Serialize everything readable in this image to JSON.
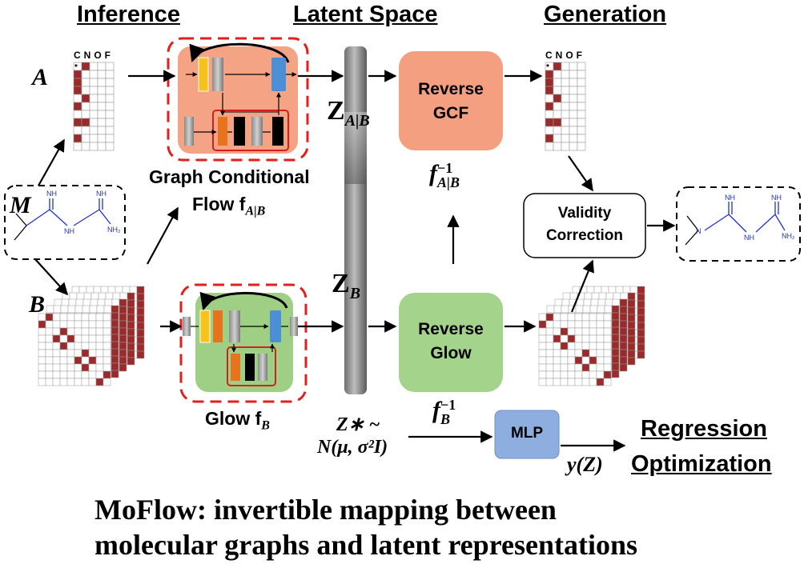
{
  "headers": {
    "inference": "Inference",
    "latent_space": "Latent Space",
    "generation": "Generation",
    "regression_line1": "Regression",
    "regression_line2": "Optimization"
  },
  "labels": {
    "a": "A",
    "m": "M",
    "b": "B",
    "cnof_left": "CNOF",
    "cnof_right": "CNOF",
    "graph_conditional_flow_line1": "Graph Conditional",
    "graph_conditional_flow_line2": "Flow f",
    "graph_conditional_flow_sub": "A|B",
    "glow": "Glow f",
    "glow_sub": "B",
    "z_ab": "Z",
    "z_ab_sub": "A|B",
    "z_b": "Z",
    "z_b_sub": "B",
    "z_star_line1": "Z∗ ~",
    "z_star_line2": "N(μ, σ²I)",
    "f_inv_ab": "f",
    "f_inv_ab_sup": "−1",
    "f_inv_ab_sub": "A|B",
    "f_inv_b": "f",
    "f_inv_b_sup": "−1",
    "f_inv_b_sub": "B",
    "y_z": "y(Z)"
  },
  "boxes": {
    "reverse_gcf_line1": "Reverse",
    "reverse_gcf_line2": "GCF",
    "reverse_glow_line1": "Reverse",
    "reverse_glow_line2": "Glow",
    "validity_line1": "Validity",
    "validity_line2": "Correction",
    "mlp": "MLP"
  },
  "molecule": {
    "atom_nh_top": "NH",
    "atom_nh_mid": "NH",
    "atom_nh_top2": "NH",
    "atom_nh2": "NH₂",
    "atom_n": "N"
  },
  "caption": {
    "line1": "MoFlow: invertible mapping between",
    "line2": "molecular graphs and latent representations"
  },
  "colors": {
    "matrix_fill": "#9b2a2a",
    "gcf_bg": "#f4a484",
    "glow_bg": "#9fcf84",
    "reverse_gcf": "#f4a080",
    "reverse_glow": "#a4d48c",
    "mlp": "#8faee0",
    "dashed_red": "#e0201c",
    "molecule_blue": "#2233cc"
  }
}
